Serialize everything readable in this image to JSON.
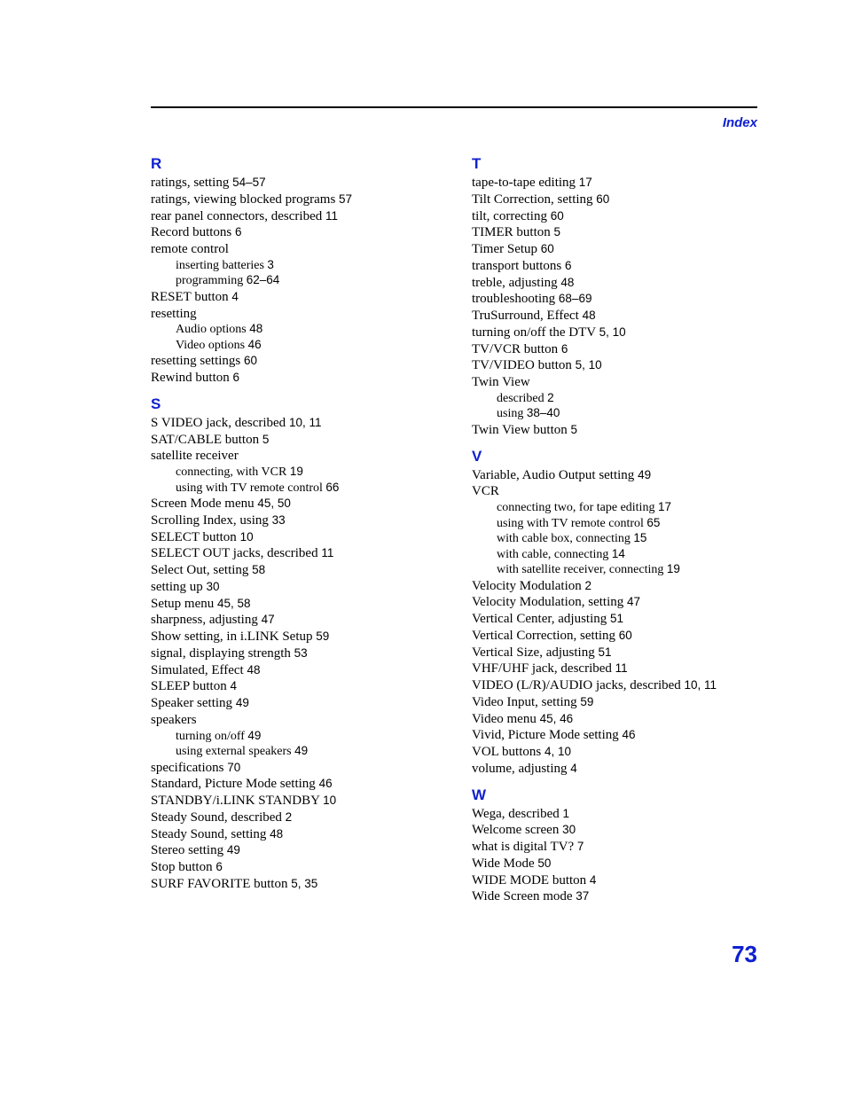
{
  "colors": {
    "accent": "#1020d0",
    "text": "#000000",
    "background": "#ffffff"
  },
  "header": {
    "label": "Index"
  },
  "page_number": "73",
  "left": {
    "R": {
      "letter": "R",
      "e0": {
        "t": "ratings, setting ",
        "p": "54–57"
      },
      "e1": {
        "t": "ratings, viewing blocked programs ",
        "p": "57"
      },
      "e2": {
        "t": "rear panel connectors, described ",
        "p": "11"
      },
      "e3": {
        "t": "Record buttons ",
        "p": "6"
      },
      "e4": {
        "t": "remote control"
      },
      "e4a": {
        "t": "inserting batteries ",
        "p": "3"
      },
      "e4b": {
        "t": "programming ",
        "p": "62–64"
      },
      "e5": {
        "t": "RESET button ",
        "p": "4"
      },
      "e6": {
        "t": "resetting"
      },
      "e6a": {
        "t": "Audio options ",
        "p": "48"
      },
      "e6b": {
        "t": "Video options ",
        "p": "46"
      },
      "e7": {
        "t": "resetting settings ",
        "p": "60"
      },
      "e8": {
        "t": "Rewind button ",
        "p": "6"
      }
    },
    "S": {
      "letter": "S",
      "e0": {
        "t": "S VIDEO jack, described ",
        "p": "10, 11"
      },
      "e1": {
        "t": "SAT/CABLE button ",
        "p": "5"
      },
      "e2": {
        "t": "satellite receiver"
      },
      "e2a": {
        "t": "connecting, with VCR ",
        "p": "19"
      },
      "e2b": {
        "t": "using with TV remote control ",
        "p": "66"
      },
      "e3": {
        "t": "Screen Mode menu ",
        "p": "45, 50"
      },
      "e4": {
        "t": "Scrolling Index, using ",
        "p": "33"
      },
      "e5": {
        "t": "SELECT button ",
        "p": "10"
      },
      "e6": {
        "t": "SELECT OUT jacks, described ",
        "p": "11"
      },
      "e7": {
        "t": "Select Out, setting ",
        "p": "58"
      },
      "e8": {
        "t": "setting up ",
        "p": "30"
      },
      "e9": {
        "t": "Setup menu ",
        "p": "45, 58"
      },
      "e10": {
        "t": "sharpness, adjusting ",
        "p": "47"
      },
      "e11": {
        "t": "Show setting, in i.LINK Setup ",
        "p": "59"
      },
      "e12": {
        "t": "signal, displaying strength ",
        "p": "53"
      },
      "e13": {
        "t": "Simulated, Effect ",
        "p": "48"
      },
      "e14": {
        "t": "SLEEP button ",
        "p": "4"
      },
      "e15": {
        "t": "Speaker setting ",
        "p": "49"
      },
      "e16": {
        "t": "speakers"
      },
      "e16a": {
        "t": "turning on/off ",
        "p": "49"
      },
      "e16b": {
        "t": "using external speakers ",
        "p": "49"
      },
      "e17": {
        "t": "specifications ",
        "p": "70"
      },
      "e18": {
        "t": "Standard, Picture Mode setting ",
        "p": "46"
      },
      "e19": {
        "t": "STANDBY/i.LINK STANDBY ",
        "p": "10"
      },
      "e20": {
        "t": "Steady Sound, described ",
        "p": "2"
      },
      "e21": {
        "t": "Steady Sound, setting ",
        "p": "48"
      },
      "e22": {
        "t": "Stereo setting ",
        "p": "49"
      },
      "e23": {
        "t": "Stop button ",
        "p": "6"
      },
      "e24": {
        "t": "SURF FAVORITE button ",
        "p": "5, 35"
      }
    }
  },
  "right": {
    "T": {
      "letter": "T",
      "e0": {
        "t": "tape-to-tape editing ",
        "p": "17"
      },
      "e1": {
        "t": "Tilt Correction, setting ",
        "p": "60"
      },
      "e2": {
        "t": "tilt, correcting ",
        "p": "60"
      },
      "e3": {
        "t": "TIMER button ",
        "p": "5"
      },
      "e4": {
        "t": "Timer Setup ",
        "p": "60"
      },
      "e5": {
        "t": "transport buttons ",
        "p": "6"
      },
      "e6": {
        "t": "treble, adjusting ",
        "p": "48"
      },
      "e7": {
        "t": "troubleshooting ",
        "p": "68–69"
      },
      "e8": {
        "t": "TruSurround, Effect ",
        "p": "48"
      },
      "e9": {
        "t": "turning on/off the DTV ",
        "p": "5, 10"
      },
      "e10": {
        "t": "TV/VCR button ",
        "p": "6"
      },
      "e11": {
        "t": "TV/VIDEO button ",
        "p": "5, 10"
      },
      "e12": {
        "t": "Twin View"
      },
      "e12a": {
        "t": "described ",
        "p": "2"
      },
      "e12b": {
        "t": "using ",
        "p": "38–40"
      },
      "e13": {
        "t": "Twin View button ",
        "p": "5"
      }
    },
    "V": {
      "letter": "V",
      "e0": {
        "t": "Variable, Audio Output setting ",
        "p": "49"
      },
      "e1": {
        "t": "VCR"
      },
      "e1a": {
        "t": "connecting two, for tape editing ",
        "p": "17"
      },
      "e1b": {
        "t": "using with TV remote control ",
        "p": "65"
      },
      "e1c": {
        "t": "with cable box, connecting ",
        "p": "15"
      },
      "e1d": {
        "t": "with cable, connecting ",
        "p": "14"
      },
      "e1e": {
        "t": "with satellite receiver, connecting ",
        "p": "19"
      },
      "e2": {
        "t": "Velocity Modulation ",
        "p": "2"
      },
      "e3": {
        "t": "Velocity Modulation, setting ",
        "p": "47"
      },
      "e4": {
        "t": "Vertical Center, adjusting ",
        "p": "51"
      },
      "e5": {
        "t": "Vertical Correction, setting ",
        "p": "60"
      },
      "e6": {
        "t": "Vertical Size, adjusting ",
        "p": "51"
      },
      "e7": {
        "t": "VHF/UHF jack, described ",
        "p": "11"
      },
      "e8": {
        "t": "VIDEO (L/R)/AUDIO jacks, described ",
        "p": "10, 11"
      },
      "e9": {
        "t": "Video Input, setting ",
        "p": "59"
      },
      "e10": {
        "t": "Video menu ",
        "p": "45, 46"
      },
      "e11": {
        "t": "Vivid, Picture Mode setting ",
        "p": "46"
      },
      "e12": {
        "t": "VOL buttons ",
        "p": "4, 10"
      },
      "e13": {
        "t": "volume, adjusting ",
        "p": "4"
      }
    },
    "W": {
      "letter": "W",
      "e0": {
        "t": "Wega, described ",
        "p": "1"
      },
      "e1": {
        "t": "Welcome screen ",
        "p": "30"
      },
      "e2": {
        "t": "what is digital TV? ",
        "p": "7"
      },
      "e3": {
        "t": "Wide Mode ",
        "p": "50"
      },
      "e4": {
        "t": "WIDE MODE button ",
        "p": "4"
      },
      "e5": {
        "t": "Wide Screen mode ",
        "p": "37"
      }
    }
  }
}
